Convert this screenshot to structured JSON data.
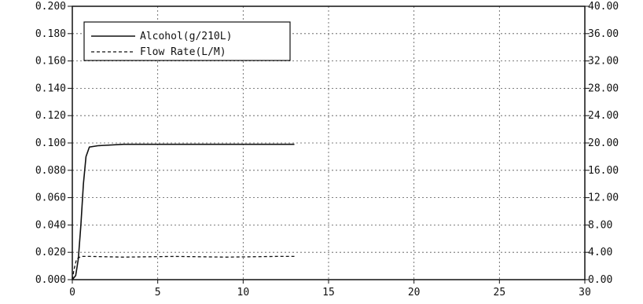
{
  "chart_data": {
    "type": "line",
    "title": "",
    "xlabel": "",
    "ylabel": "",
    "y2label": "",
    "xlim": [
      0,
      30
    ],
    "ylim": [
      0,
      0.2
    ],
    "y2lim": [
      0,
      40
    ],
    "grid": true,
    "legend_position": "top-left",
    "x_ticks": [
      "0",
      "5",
      "10",
      "15",
      "20",
      "25",
      "30"
    ],
    "y_ticks": [
      "0.000",
      "0.020",
      "0.040",
      "0.060",
      "0.080",
      "0.100",
      "0.120",
      "0.140",
      "0.160",
      "0.180",
      "0.200"
    ],
    "y2_ticks": [
      "0.00",
      "4.00",
      "8.00",
      "12.00",
      "16.00",
      "20.00",
      "24.00",
      "28.00",
      "32.00",
      "36.00",
      "40.00"
    ],
    "series": [
      {
        "name": "Alcohol(g/210L)",
        "axis": "left",
        "style": "solid",
        "color": "#111111",
        "x": [
          0,
          0.2,
          0.35,
          0.5,
          0.65,
          0.8,
          1.0,
          1.5,
          3,
          5,
          8,
          10,
          13
        ],
        "y": [
          0,
          0.003,
          0.015,
          0.04,
          0.07,
          0.09,
          0.097,
          0.098,
          0.099,
          0.099,
          0.099,
          0.099,
          0.099
        ]
      },
      {
        "name": "Flow Rate(L/M)",
        "axis": "right",
        "style": "dashed",
        "color": "#111111",
        "x": [
          0,
          0.1,
          0.25,
          0.5,
          1,
          3,
          6,
          9,
          12,
          13
        ],
        "y": [
          0,
          1.5,
          3.0,
          3.4,
          3.4,
          3.3,
          3.4,
          3.3,
          3.4,
          3.4
        ]
      }
    ]
  }
}
